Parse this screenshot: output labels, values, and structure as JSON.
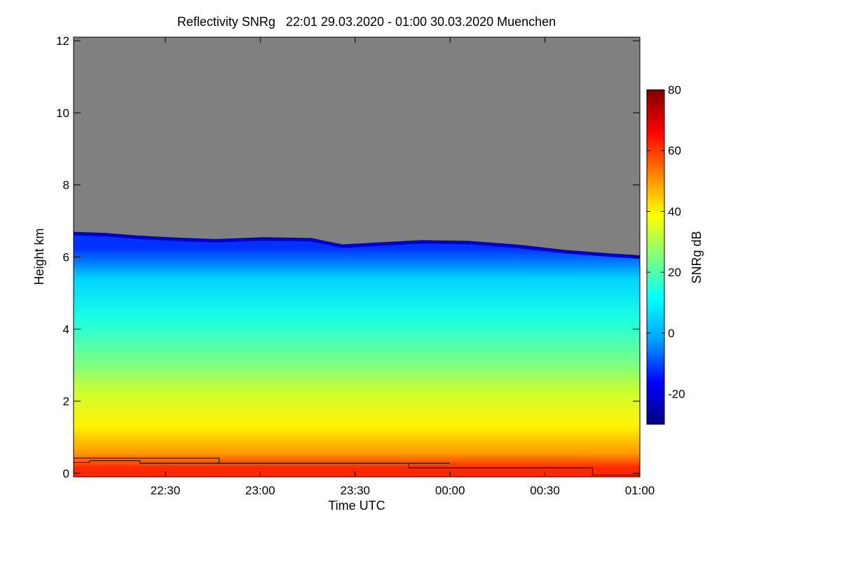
{
  "chart_data": {
    "type": "heatmap",
    "title": "Reflectivity SNRg   22:01 29.03.2020 - 01:00 30.03.2020 Muenchen",
    "xlabel": "Time UTC",
    "ylabel": "Height km",
    "x_range": [
      "22:01",
      "01:00"
    ],
    "xticks": [
      {
        "label": "22:30",
        "minutes_after_2201": 29
      },
      {
        "label": "23:00",
        "minutes_after_2201": 59
      },
      {
        "label": "23:30",
        "minutes_after_2201": 89
      },
      {
        "label": "00:00",
        "minutes_after_2201": 119
      },
      {
        "label": "00:30",
        "minutes_after_2201": 149
      },
      {
        "label": "01:00",
        "minutes_after_2201": 179
      }
    ],
    "ylim": [
      -0.1,
      12.1
    ],
    "yticks": [
      0,
      2,
      4,
      6,
      8,
      10,
      12
    ],
    "colorbar": {
      "label": "SNRg dB",
      "range": [
        -30,
        80
      ],
      "ticks": [
        -20,
        0,
        20,
        40,
        60,
        80
      ],
      "colors": [
        "#000080",
        "#0000ff",
        "#00a0ff",
        "#00ffff",
        "#7fff7f",
        "#ffff00",
        "#ff8000",
        "#ff0000",
        "#800000"
      ]
    },
    "background_color": "#808080",
    "echo_top_km": [
      {
        "t": 0,
        "h": 6.65
      },
      {
        "t": 10,
        "h": 6.62
      },
      {
        "t": 20,
        "h": 6.55
      },
      {
        "t": 30,
        "h": 6.5
      },
      {
        "t": 45,
        "h": 6.45
      },
      {
        "t": 60,
        "h": 6.5
      },
      {
        "t": 75,
        "h": 6.48
      },
      {
        "t": 85,
        "h": 6.3
      },
      {
        "t": 95,
        "h": 6.35
      },
      {
        "t": 110,
        "h": 6.42
      },
      {
        "t": 125,
        "h": 6.4
      },
      {
        "t": 140,
        "h": 6.3
      },
      {
        "t": 155,
        "h": 6.15
      },
      {
        "t": 170,
        "h": 6.05
      },
      {
        "t": 179,
        "h": 6.0
      }
    ],
    "layers": [
      {
        "h0": 0.0,
        "h1": 0.3,
        "snr": 62
      },
      {
        "h0": 0.3,
        "h1": 0.8,
        "snr": 50
      },
      {
        "h0": 0.8,
        "h1": 1.8,
        "snr": 40
      },
      {
        "h0": 1.8,
        "h1": 2.6,
        "snr": 34
      },
      {
        "h0": 2.6,
        "h1": 3.6,
        "snr": 24
      },
      {
        "h0": 3.6,
        "h1": 5.0,
        "snr": 14
      },
      {
        "h0": 5.0,
        "h1": 5.8,
        "snr": 5
      },
      {
        "h0": 5.8,
        "h1": 6.7,
        "snr": -12
      }
    ],
    "step_lines_km": [
      [
        {
          "t": 0,
          "h": 0.42
        },
        {
          "t": 46,
          "h": 0.42
        },
        {
          "t": 46,
          "h": 0.28
        },
        {
          "t": 119,
          "h": 0.28
        }
      ],
      [
        {
          "t": 0,
          "h": 0.3
        },
        {
          "t": 5,
          "h": 0.3
        },
        {
          "t": 5,
          "h": 0.35
        },
        {
          "t": 21,
          "h": 0.35
        },
        {
          "t": 21,
          "h": 0.28
        },
        {
          "t": 106,
          "h": 0.28
        },
        {
          "t": 106,
          "h": 0.15
        },
        {
          "t": 164,
          "h": 0.15
        },
        {
          "t": 164,
          "h": -0.05
        },
        {
          "t": 179,
          "h": -0.05
        }
      ]
    ]
  }
}
